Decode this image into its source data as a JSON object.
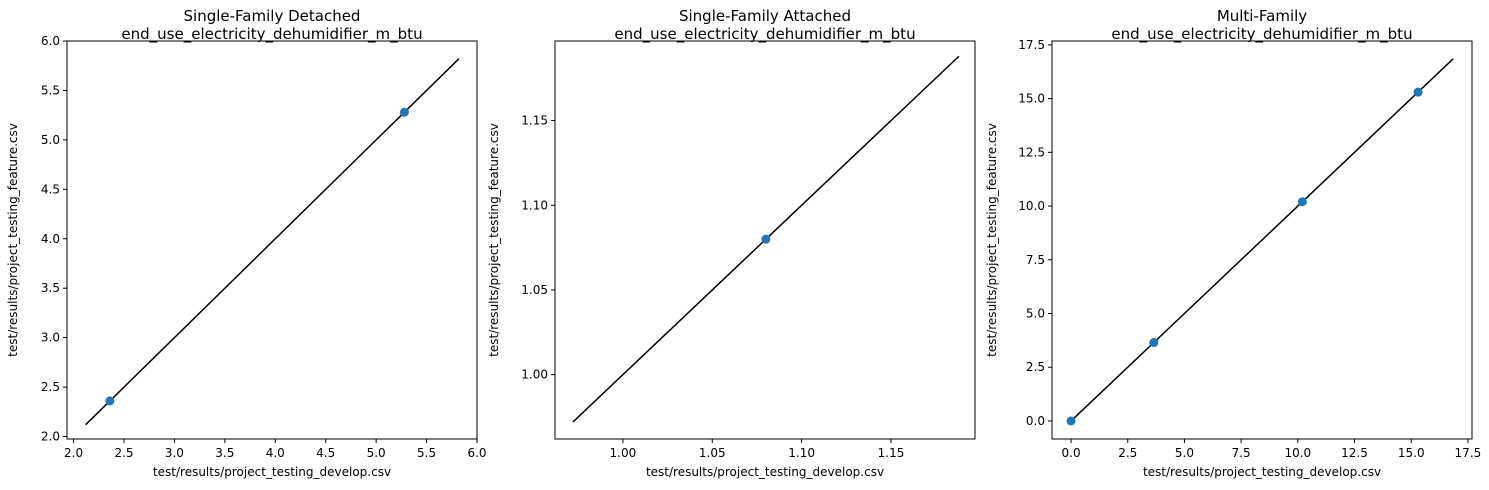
{
  "chart_data": [
    {
      "type": "scatter",
      "title": "Single-Family Detached",
      "subtitle": "end_use_electricity_dehumidifier_m_btu",
      "xlabel": "test/results/project_testing_develop.csv",
      "ylabel": "test/results/project_testing_feature.csv",
      "xlim": [
        1.935,
        6.0
      ],
      "ylim": [
        1.975,
        6.0
      ],
      "xticks": [
        2.0,
        2.5,
        3.0,
        3.5,
        4.0,
        4.5,
        5.0,
        5.5,
        6.0
      ],
      "xtick_labels": [
        "2.0",
        "2.5",
        "3.0",
        "3.5",
        "4.0",
        "4.5",
        "5.0",
        "5.5",
        "6.0"
      ],
      "yticks": [
        2.0,
        2.5,
        3.0,
        3.5,
        4.0,
        4.5,
        5.0,
        5.5,
        6.0
      ],
      "ytick_labels": [
        "2.0",
        "2.5",
        "3.0",
        "3.5",
        "4.0",
        "4.5",
        "5.0",
        "5.5",
        "6.0"
      ],
      "points": [
        {
          "x": 2.36,
          "y": 2.36
        },
        {
          "x": 5.28,
          "y": 5.28
        }
      ],
      "reference_line": {
        "from": 2.12,
        "to": 5.82
      },
      "grid": false
    },
    {
      "type": "scatter",
      "title": "Single-Family Attached",
      "subtitle": "end_use_electricity_dehumidifier_m_btu",
      "xlabel": "test/results/project_testing_develop.csv",
      "ylabel": "test/results/project_testing_feature.csv",
      "xlim": [
        0.962,
        1.197
      ],
      "ylim": [
        0.962,
        1.197
      ],
      "xticks": [
        1.0,
        1.05,
        1.1,
        1.15
      ],
      "xtick_labels": [
        "1.00",
        "1.05",
        "1.10",
        "1.15"
      ],
      "yticks": [
        1.0,
        1.05,
        1.1,
        1.15
      ],
      "ytick_labels": [
        "1.00",
        "1.05",
        "1.10",
        "1.15"
      ],
      "points": [
        {
          "x": 1.08,
          "y": 1.08
        }
      ],
      "reference_line": {
        "from": 0.972,
        "to": 1.188
      },
      "grid": false
    },
    {
      "type": "scatter",
      "title": "Multi-Family",
      "subtitle": "end_use_electricity_dehumidifier_m_btu",
      "xlabel": "test/results/project_testing_develop.csv",
      "ylabel": "test/results/project_testing_feature.csv",
      "xlim": [
        -0.84,
        17.68
      ],
      "ylim": [
        -0.84,
        17.68
      ],
      "xticks": [
        0.0,
        2.5,
        5.0,
        7.5,
        10.0,
        12.5,
        15.0,
        17.5
      ],
      "xtick_labels": [
        "0.0",
        "2.5",
        "5.0",
        "7.5",
        "10.0",
        "12.5",
        "15.0",
        "17.5"
      ],
      "yticks": [
        0.0,
        2.5,
        5.0,
        7.5,
        10.0,
        12.5,
        15.0,
        17.5
      ],
      "ytick_labels": [
        "0.0",
        "2.5",
        "5.0",
        "7.5",
        "10.0",
        "12.5",
        "15.0",
        "17.5"
      ],
      "points": [
        {
          "x": 0.0,
          "y": 0.0
        },
        {
          "x": 3.65,
          "y": 3.65
        },
        {
          "x": 10.2,
          "y": 10.2
        },
        {
          "x": 15.3,
          "y": 15.3
        }
      ],
      "reference_line": {
        "from": 0.0,
        "to": 16.85
      },
      "grid": false
    }
  ],
  "style": {
    "point_color": "#1f77b4",
    "line_color": "#000000",
    "axis_color": "#000000",
    "background": "#ffffff"
  }
}
